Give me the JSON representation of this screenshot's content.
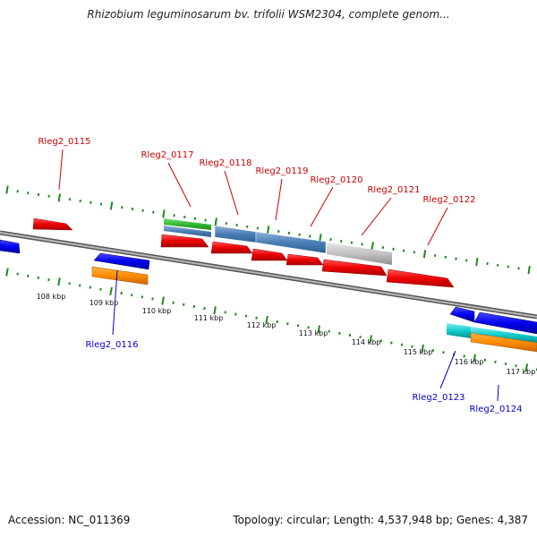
{
  "title": "Rhizobium leguminosarum bv. trifolii WSM2304, complete genom...",
  "footer": {
    "accession": "Accession: NC_011369",
    "summary": "Topology: circular; Length: 4,537,948 bp; Genes: 4,387"
  },
  "colors": {
    "backbone": "#7a7a7a",
    "tick": "#1f8a1f",
    "forward_label": "#cc0000",
    "reverse_label": "#0000cc",
    "scale_label": "#111111"
  },
  "scale_labels": [
    "108 kbp",
    "109 kbp",
    "110 kbp",
    "111 kbp",
    "112 kbp",
    "113 kbp",
    "114 kbp",
    "115 kbp",
    "116 kbp",
    "117 kbp"
  ],
  "genes_forward": [
    "Rleg2_0115",
    "Rleg2_0117",
    "Rleg2_0118",
    "Rleg2_0119",
    "Rleg2_0120",
    "Rleg2_0121",
    "Rleg2_0122"
  ],
  "genes_reverse": [
    "Rleg2_0116",
    "Rleg2_0123",
    "Rleg2_0124"
  ]
}
